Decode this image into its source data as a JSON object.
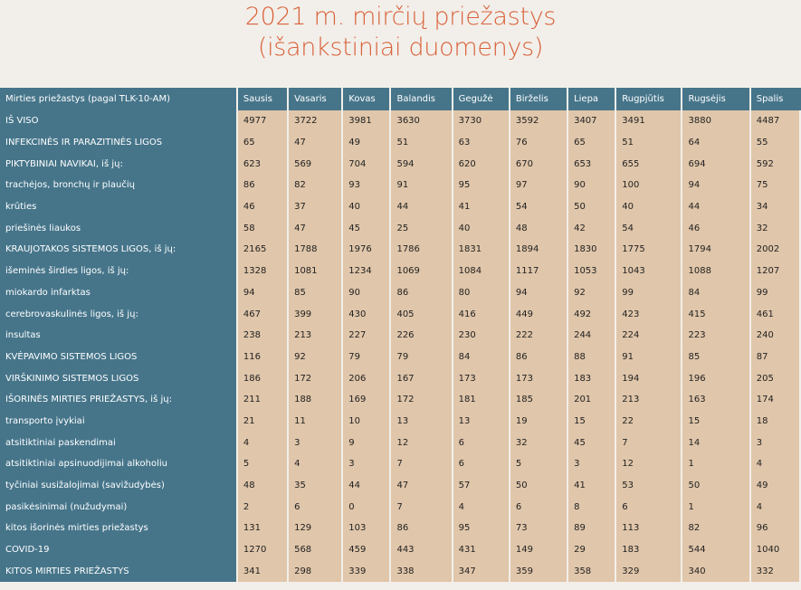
{
  "title": {
    "line1": "2021 m. mirčių priežastys",
    "line2": "(išankstiniai duomenys)"
  },
  "table": {
    "header_label": "Mirties priežastys (pagal TLK-10-AM)",
    "months": [
      "Sausis",
      "Vasaris",
      "Kovas",
      "Balandis",
      "Gegužė",
      "Birželis",
      "Liepa",
      "Rugpjūtis",
      "Rugsėjis",
      "Spalis"
    ],
    "rows": [
      {
        "label": "IŠ VISO",
        "values": [
          "4977",
          "3722",
          "3981",
          "3630",
          "3730",
          "3592",
          "3407",
          "3491",
          "3880",
          "4487"
        ]
      },
      {
        "label": "INFEKCINĖS IR PARAZITINĖS LIGOS",
        "values": [
          "65",
          "47",
          "49",
          "51",
          "63",
          "76",
          "65",
          "51",
          "64",
          "55"
        ]
      },
      {
        "label": "PIKTYBINIAI NAVIKAI, iš jų:",
        "values": [
          "623",
          "569",
          "704",
          "594",
          "620",
          "670",
          "653",
          "655",
          "694",
          "592"
        ]
      },
      {
        "label": "trachėjos, bronchų ir plaučių",
        "values": [
          "86",
          "82",
          "93",
          "91",
          "95",
          "97",
          "90",
          "100",
          "94",
          "75"
        ]
      },
      {
        "label": "krūties",
        "values": [
          "46",
          "37",
          "40",
          "44",
          "41",
          "54",
          "50",
          "40",
          "44",
          "34"
        ]
      },
      {
        "label": "priešinės liaukos",
        "values": [
          "58",
          "47",
          "45",
          "25",
          "40",
          "48",
          "42",
          "54",
          "46",
          "32"
        ]
      },
      {
        "label": "KRAUJOTAKOS SISTEMOS LIGOS, iš jų:",
        "values": [
          "2165",
          "1788",
          "1976",
          "1786",
          "1831",
          "1894",
          "1830",
          "1775",
          "1794",
          "2002"
        ]
      },
      {
        "label": "išeminės širdies ligos, iš jų:",
        "values": [
          "1328",
          "1081",
          "1234",
          "1069",
          "1084",
          "1117",
          "1053",
          "1043",
          "1088",
          "1207"
        ]
      },
      {
        "label": "miokardo infarktas",
        "values": [
          "94",
          "85",
          "90",
          "86",
          "80",
          "94",
          "92",
          "99",
          "84",
          "99"
        ]
      },
      {
        "label": "cerebrovaskulinės ligos, iš jų:",
        "values": [
          "467",
          "399",
          "430",
          "405",
          "416",
          "449",
          "492",
          "423",
          "415",
          "461"
        ]
      },
      {
        "label": "insultas",
        "values": [
          "238",
          "213",
          "227",
          "226",
          "230",
          "222",
          "244",
          "224",
          "223",
          "240"
        ]
      },
      {
        "label": "KVĖPAVIMO SISTEMOS LIGOS",
        "values": [
          "116",
          "92",
          "79",
          "79",
          "84",
          "86",
          "88",
          "91",
          "85",
          "87"
        ]
      },
      {
        "label": "VIRŠKINIMO SISTEMOS LIGOS",
        "values": [
          "186",
          "172",
          "206",
          "167",
          "173",
          "173",
          "183",
          "194",
          "196",
          "205"
        ]
      },
      {
        "label": "IŠORINĖS MIRTIES PRIEŽASTYS, iš jų:",
        "values": [
          "211",
          "188",
          "169",
          "172",
          "181",
          "185",
          "201",
          "213",
          "163",
          "174"
        ]
      },
      {
        "label": "transporto įvykiai",
        "values": [
          "21",
          "11",
          "10",
          "13",
          "13",
          "19",
          "15",
          "22",
          "15",
          "18"
        ]
      },
      {
        "label": "atsitiktiniai paskendimai",
        "values": [
          "4",
          "3",
          "9",
          "12",
          "6",
          "32",
          "45",
          "7",
          "14",
          "3"
        ]
      },
      {
        "label": "atsitiktiniai apsinuodijimai alkoholiu",
        "values": [
          "5",
          "4",
          "3",
          "7",
          "6",
          "5",
          "3",
          "12",
          "1",
          "4"
        ]
      },
      {
        "label": "tyčiniai susižalojimai (savižudybės)",
        "values": [
          "48",
          "35",
          "44",
          "47",
          "57",
          "50",
          "41",
          "53",
          "50",
          "49"
        ]
      },
      {
        "label": "pasikėsinimai (nužudymai)",
        "values": [
          "2",
          "6",
          "0",
          "7",
          "4",
          "6",
          "8",
          "6",
          "1",
          "4"
        ]
      },
      {
        "label": "kitos išorinės mirties priežastys",
        "values": [
          "131",
          "129",
          "103",
          "86",
          "95",
          "73",
          "89",
          "113",
          "82",
          "96"
        ]
      },
      {
        "label": "COVID-19",
        "values": [
          "1270",
          "568",
          "459",
          "443",
          "431",
          "149",
          "29",
          "183",
          "544",
          "1040"
        ]
      },
      {
        "label": "KITOS MIRTIES PRIEŽASTYS",
        "values": [
          "341",
          "298",
          "339",
          "338",
          "347",
          "359",
          "358",
          "329",
          "340",
          "332"
        ]
      }
    ]
  }
}
